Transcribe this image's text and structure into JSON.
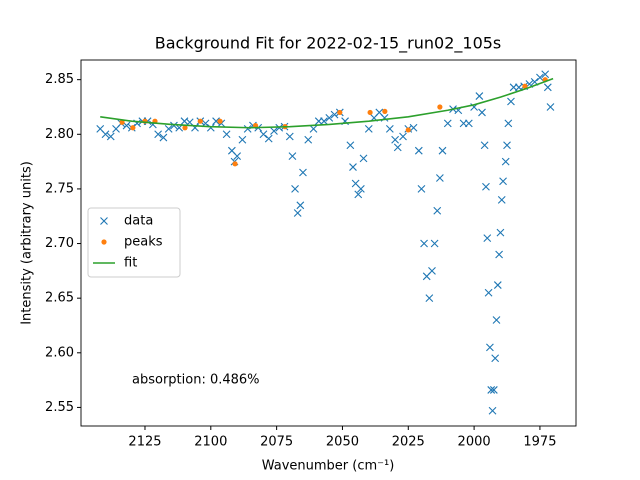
{
  "chart_data": {
    "type": "scatter",
    "title": "Background Fit for 2022-02-15_run02_105s",
    "x_label": "Wavenumber (cm⁻¹)",
    "y_label": "Intensity (arbitrary units)",
    "annotation": "absorption: 0.486%",
    "xlim": [
      2149.3,
      1961.3
    ],
    "ylim": [
      2.533,
      2.868
    ],
    "xticks": [
      2125,
      2100,
      2075,
      2050,
      2025,
      2000,
      1975
    ],
    "yticks": [
      2.55,
      {
        "value": 2.6,
        "label": "2.60"
      },
      2.65,
      {
        "value": 2.7,
        "label": "2.70"
      },
      2.75,
      {
        "value": 2.8,
        "label": "2.80"
      },
      2.85
    ],
    "legend": "center left",
    "series": [
      {
        "name": "data",
        "color": "#1f77b4",
        "marker": "x",
        "x": [
          2142,
          2140,
          2138,
          2136,
          2134,
          2132,
          2130,
          2128,
          2126,
          2124,
          2122,
          2120,
          2118,
          2116,
          2114,
          2112,
          2110,
          2108,
          2106,
          2104,
          2102,
          2100,
          2098,
          2096,
          2094,
          2092,
          2091,
          2090,
          2088,
          2086,
          2084,
          2082,
          2080,
          2078,
          2076,
          2074,
          2072,
          2070,
          2069,
          2068,
          2067,
          2066,
          2065,
          2063,
          2061,
          2059,
          2057,
          2055,
          2053,
          2051,
          2049,
          2047,
          2046,
          2045,
          2044,
          2043,
          2042,
          2040,
          2038,
          2036,
          2034,
          2032,
          2030,
          2029,
          2027,
          2025,
          2023,
          2021,
          2020,
          2019,
          2018,
          2017,
          2016,
          2015,
          2014,
          2013,
          2012,
          2010,
          2008,
          2006,
          2004,
          2002,
          2000,
          1998,
          1997,
          1996,
          1995.5,
          1995,
          1994.5,
          1994,
          1993.5,
          1993,
          1992.5,
          1992,
          1991.5,
          1991,
          1990.5,
          1990,
          1989.5,
          1989,
          1988,
          1987.5,
          1987,
          1986,
          1985,
          1983,
          1981,
          1979,
          1977,
          1975,
          1973,
          1972,
          1971
        ],
        "values": [
          2.805,
          2.8,
          2.798,
          2.805,
          2.81,
          2.808,
          2.806,
          2.81,
          2.812,
          2.812,
          2.809,
          2.8,
          2.797,
          2.805,
          2.808,
          2.806,
          2.812,
          2.811,
          2.806,
          2.812,
          2.81,
          2.806,
          2.812,
          2.81,
          2.8,
          2.785,
          2.775,
          2.78,
          2.795,
          2.805,
          2.808,
          2.806,
          2.8,
          2.796,
          2.803,
          2.806,
          2.807,
          2.798,
          2.78,
          2.75,
          2.728,
          2.735,
          2.765,
          2.795,
          2.805,
          2.812,
          2.812,
          2.815,
          2.818,
          2.82,
          2.812,
          2.79,
          2.77,
          2.755,
          2.745,
          2.75,
          2.778,
          2.805,
          2.815,
          2.82,
          2.815,
          2.805,
          2.795,
          2.788,
          2.798,
          2.805,
          2.806,
          2.785,
          2.75,
          2.7,
          2.67,
          2.65,
          2.675,
          2.7,
          2.73,
          2.76,
          2.785,
          2.81,
          2.823,
          2.822,
          2.81,
          2.81,
          2.825,
          2.835,
          2.82,
          2.79,
          2.752,
          2.705,
          2.655,
          2.605,
          2.566,
          2.547,
          2.566,
          2.595,
          2.63,
          2.662,
          2.69,
          2.71,
          2.74,
          2.757,
          2.775,
          2.79,
          2.81,
          2.83,
          2.843,
          2.843,
          2.844,
          2.846,
          2.848,
          2.852,
          2.855,
          2.843,
          2.825
        ]
      },
      {
        "name": "peaks",
        "color": "#ff7f0e",
        "marker": "o",
        "x": [
          2133.7,
          2129.6,
          2125,
          2121.2,
          2109.8,
          2104,
          2096.5,
          2090.8,
          2083,
          2071.8,
          2051,
          2039.5,
          2033.9,
          2025,
          2013,
          1980.7,
          1973
        ],
        "values": [
          2.811,
          2.806,
          2.812,
          2.812,
          2.806,
          2.812,
          2.812,
          2.773,
          2.808,
          2.807,
          2.82,
          2.82,
          2.821,
          2.804,
          2.825,
          2.844,
          2.85
        ]
      },
      {
        "name": "fit",
        "color": "#2ca02c",
        "marker": "line",
        "x": [
          2142,
          2130,
          2115,
          2100,
          2085,
          2070,
          2055,
          2040,
          2025,
          2010,
          2000,
          1990,
          1980,
          1970
        ],
        "values": [
          2.816,
          2.812,
          2.809,
          2.807,
          2.806,
          2.807,
          2.809,
          2.812,
          2.816,
          2.822,
          2.827,
          2.834,
          2.842,
          2.851
        ]
      }
    ]
  }
}
